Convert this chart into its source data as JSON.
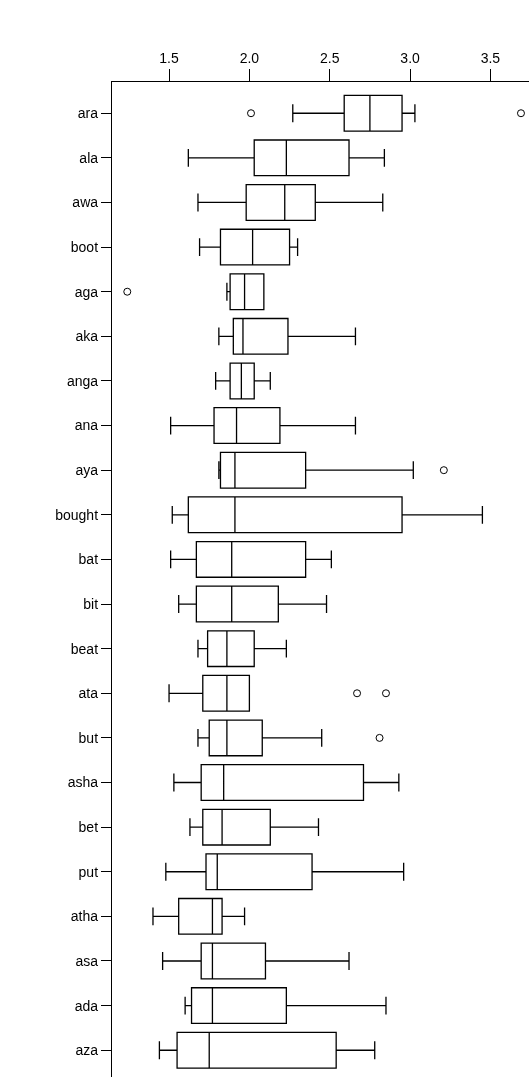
{
  "chart_data": {
    "type": "box",
    "orientation": "horizontal",
    "color": "#000000",
    "categories": [
      "ara",
      "ala",
      "awa",
      "boot",
      "aga",
      "aka",
      "anga",
      "ana",
      "aya",
      "bought",
      "bat",
      "bit",
      "beat",
      "ata",
      "but",
      "asha",
      "bet",
      "put",
      "atha",
      "asa",
      "ada",
      "aza"
    ],
    "boxes": [
      {
        "low": 2.27,
        "q1": 2.59,
        "median": 2.75,
        "q3": 2.95,
        "high": 3.03,
        "outliers": [
          2.01,
          3.69
        ]
      },
      {
        "low": 1.62,
        "q1": 2.03,
        "median": 2.23,
        "q3": 2.62,
        "high": 2.84
      },
      {
        "low": 1.68,
        "q1": 1.98,
        "median": 2.22,
        "q3": 2.41,
        "high": 2.83
      },
      {
        "low": 1.69,
        "q1": 1.82,
        "median": 2.02,
        "q3": 2.25,
        "high": 2.3
      },
      {
        "low": 1.86,
        "q1": 1.88,
        "median": 1.97,
        "q3": 2.09,
        "high": 2.09,
        "outliers": [
          1.24
        ]
      },
      {
        "low": 1.81,
        "q1": 1.9,
        "median": 1.96,
        "q3": 2.24,
        "high": 2.66
      },
      {
        "low": 1.79,
        "q1": 1.88,
        "median": 1.95,
        "q3": 2.03,
        "high": 2.13
      },
      {
        "low": 1.51,
        "q1": 1.78,
        "median": 1.92,
        "q3": 2.19,
        "high": 2.66
      },
      {
        "low": 1.81,
        "q1": 1.82,
        "median": 1.91,
        "q3": 2.35,
        "high": 3.02,
        "outliers": [
          3.21
        ]
      },
      {
        "low": 1.52,
        "q1": 1.62,
        "median": 1.91,
        "q3": 2.95,
        "high": 3.45
      },
      {
        "low": 1.51,
        "q1": 1.67,
        "median": 1.89,
        "q3": 2.35,
        "high": 2.51
      },
      {
        "low": 1.56,
        "q1": 1.67,
        "median": 1.89,
        "q3": 2.18,
        "high": 2.48
      },
      {
        "low": 1.68,
        "q1": 1.74,
        "median": 1.86,
        "q3": 2.03,
        "high": 2.23
      },
      {
        "low": 1.5,
        "q1": 1.71,
        "median": 1.86,
        "q3": 2.0,
        "high": 2.0,
        "outliers": [
          2.67,
          2.85
        ]
      },
      {
        "low": 1.68,
        "q1": 1.75,
        "median": 1.86,
        "q3": 2.08,
        "high": 2.45,
        "outliers": [
          2.81
        ]
      },
      {
        "low": 1.53,
        "q1": 1.7,
        "median": 1.84,
        "q3": 2.71,
        "high": 2.93
      },
      {
        "low": 1.63,
        "q1": 1.71,
        "median": 1.83,
        "q3": 2.13,
        "high": 2.43
      },
      {
        "low": 1.48,
        "q1": 1.73,
        "median": 1.8,
        "q3": 2.39,
        "high": 2.96
      },
      {
        "low": 1.4,
        "q1": 1.56,
        "median": 1.77,
        "q3": 1.83,
        "high": 1.97
      },
      {
        "low": 1.46,
        "q1": 1.7,
        "median": 1.77,
        "q3": 2.1,
        "high": 2.62
      },
      {
        "low": 1.6,
        "q1": 1.64,
        "median": 1.77,
        "q3": 2.23,
        "high": 2.85
      },
      {
        "low": 1.44,
        "q1": 1.55,
        "median": 1.75,
        "q3": 2.54,
        "high": 2.78
      }
    ],
    "xlim": [
      1.145,
      3.74
    ],
    "xticks": [
      1.5,
      {
        "value": 2,
        "label": "2.0"
      },
      2.5,
      {
        "value": 3,
        "label": "3.0"
      },
      3.5
    ]
  }
}
